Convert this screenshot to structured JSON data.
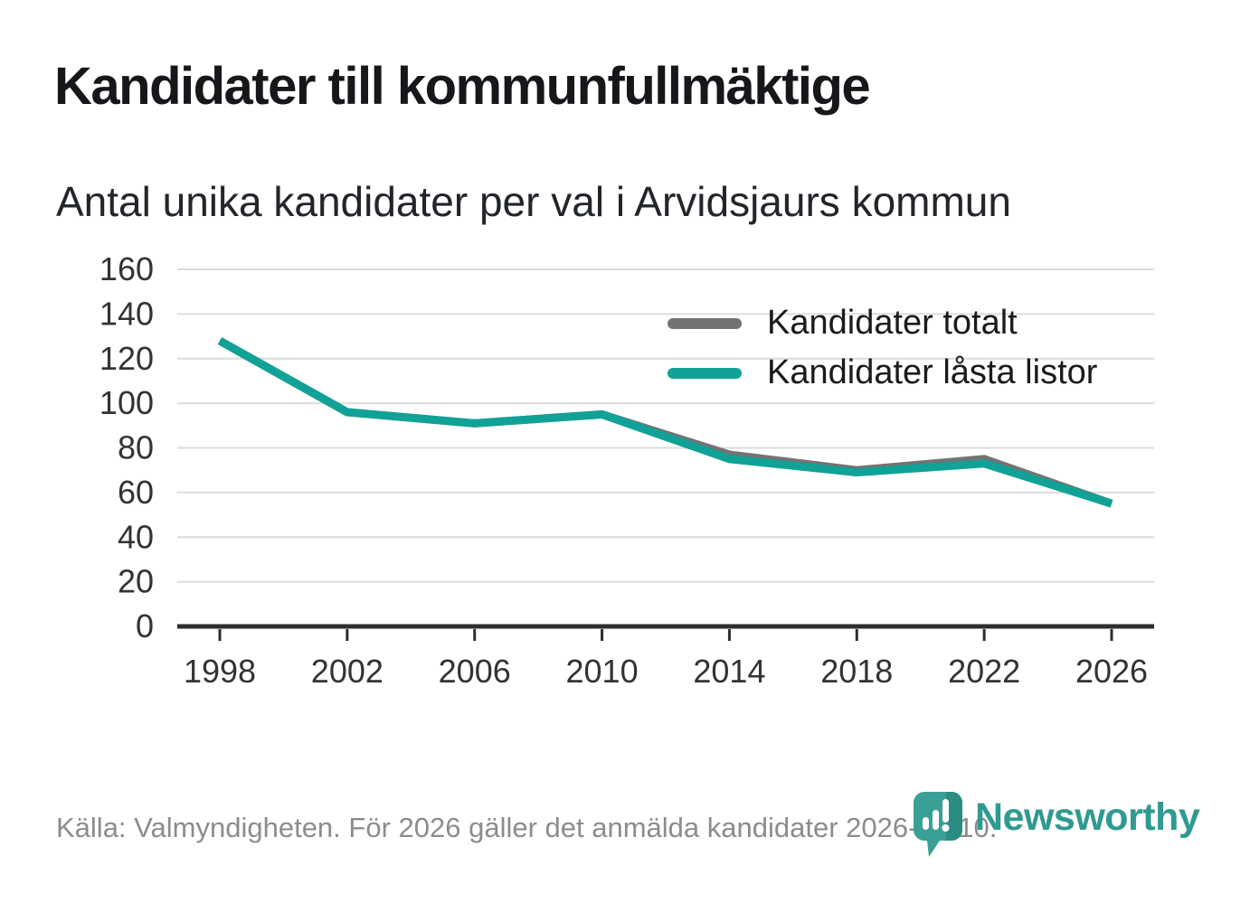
{
  "header": {
    "title": "Kandidater till kommunfullmäktige",
    "subtitle": "Antal unika kandidater per val i Arvidsjaurs kommun"
  },
  "chart_data": {
    "type": "line",
    "x": [
      1998,
      2002,
      2006,
      2010,
      2014,
      2018,
      2022,
      2026
    ],
    "series": [
      {
        "name": "Kandidater totalt",
        "color": "#737373",
        "values": [
          128,
          96,
          91,
          95,
          77,
          70,
          75,
          55
        ]
      },
      {
        "name": "Kandidater låsta listor",
        "color": "#10a296",
        "values": [
          128,
          96,
          91,
          95,
          75,
          69,
          73,
          55
        ]
      }
    ],
    "ylim": [
      0,
      160
    ],
    "ytick_step": 20,
    "grid": true,
    "legend_position": "top-right",
    "colors": {
      "gridline": "#dcdcdc",
      "axis": "#2d2d2d",
      "tick_label": "#333333"
    }
  },
  "footer": {
    "source": "Källa: Valmyndigheten. För 2026 gäller det anmälda kandidater 2026-04-10.",
    "brand": "Newsworthy",
    "brand_color": "#2f9a90",
    "logo_teal": "#3aa096",
    "logo_shadow": "#2b8c82"
  }
}
